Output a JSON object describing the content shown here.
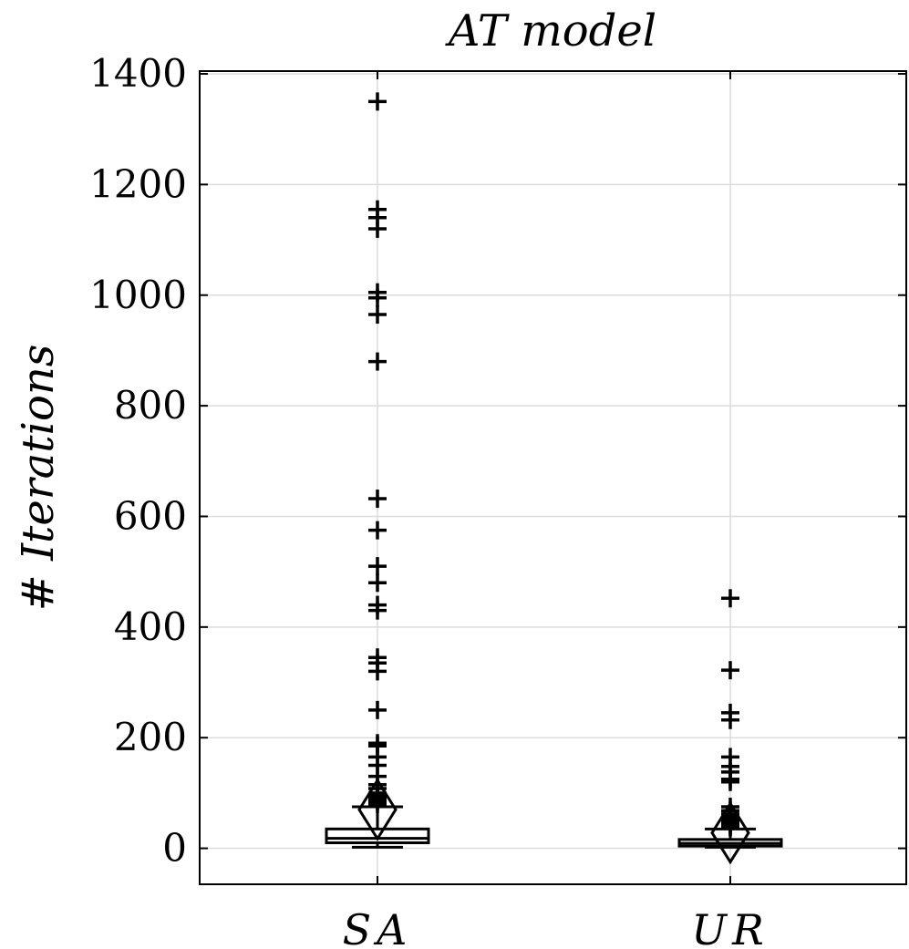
{
  "chart_data": {
    "type": "box",
    "title": "AT model",
    "ylabel": "# Iterations",
    "xlabel": "",
    "ylim": [
      -65,
      1405
    ],
    "yticks": [
      0,
      200,
      400,
      600,
      800,
      1000,
      1200,
      1400
    ],
    "ytick_labels": [
      "0",
      "200",
      "400",
      "600",
      "800",
      "1000",
      "1200",
      "1400"
    ],
    "grid": true,
    "categories": [
      "SA",
      "UR"
    ],
    "boxes": [
      {
        "category": "SA",
        "whisker_low": 2,
        "q1": 10,
        "median": 18,
        "q3": 35,
        "whisker_high": 75,
        "mean": 70,
        "outliers": [
          1350,
          1155,
          1140,
          1120,
          1005,
          995,
          965,
          880,
          632,
          575,
          510,
          480,
          440,
          430,
          345,
          335,
          320,
          250,
          190,
          185,
          165,
          150,
          130,
          115,
          108,
          100,
          95,
          90,
          85,
          80
        ]
      },
      {
        "category": "UR",
        "whisker_low": 2,
        "q1": 4,
        "median": 9,
        "q3": 16,
        "whisker_high": 35,
        "mean": 28,
        "outliers": [
          452,
          322,
          245,
          232,
          165,
          148,
          138,
          125,
          120,
          75,
          68,
          62,
          58,
          54,
          50,
          46,
          42,
          40,
          38
        ]
      }
    ]
  }
}
